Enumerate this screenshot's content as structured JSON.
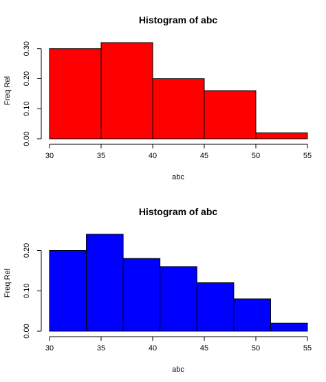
{
  "chart_data": [
    {
      "type": "bar",
      "title": "Histogram of abc",
      "xlabel": "abc",
      "ylabel": "Freq Rel",
      "color": "#ff0000",
      "bins": [
        {
          "from": 30,
          "to": 35,
          "value": 0.3
        },
        {
          "from": 35,
          "to": 40,
          "value": 0.32
        },
        {
          "from": 40,
          "to": 45,
          "value": 0.2
        },
        {
          "from": 45,
          "to": 50,
          "value": 0.16
        },
        {
          "from": 50,
          "to": 55,
          "value": 0.02
        }
      ],
      "xlim": [
        30,
        55
      ],
      "ylim": [
        0,
        0.32
      ],
      "xticks": [
        30,
        35,
        40,
        45,
        50,
        55
      ],
      "yticks": [
        0.0,
        0.1,
        0.2,
        0.3
      ],
      "xtick_labels": [
        "30",
        "35",
        "40",
        "45",
        "50",
        "55"
      ],
      "ytick_labels": [
        "0.00",
        "0.10",
        "0.20",
        "0.30"
      ],
      "grid": false
    },
    {
      "type": "bar",
      "title": "Histogram of abc",
      "xlabel": "abc",
      "ylabel": "Freq Rel",
      "color": "#0000ff",
      "bins": [
        {
          "from": 30.0,
          "to": 33.57,
          "value": 0.2
        },
        {
          "from": 33.57,
          "to": 37.14,
          "value": 0.24
        },
        {
          "from": 37.14,
          "to": 40.71,
          "value": 0.18
        },
        {
          "from": 40.71,
          "to": 44.29,
          "value": 0.16
        },
        {
          "from": 44.29,
          "to": 47.86,
          "value": 0.12
        },
        {
          "from": 47.86,
          "to": 51.43,
          "value": 0.08
        },
        {
          "from": 51.43,
          "to": 55.0,
          "value": 0.02
        }
      ],
      "xlim": [
        30,
        55
      ],
      "ylim": [
        0,
        0.24
      ],
      "xticks": [
        30,
        35,
        40,
        45,
        50,
        55
      ],
      "yticks": [
        0.0,
        0.1,
        0.2
      ],
      "xtick_labels": [
        "30",
        "35",
        "40",
        "45",
        "50",
        "55"
      ],
      "ytick_labels": [
        "0.00",
        "0.10",
        "0.20"
      ],
      "grid": false
    }
  ]
}
